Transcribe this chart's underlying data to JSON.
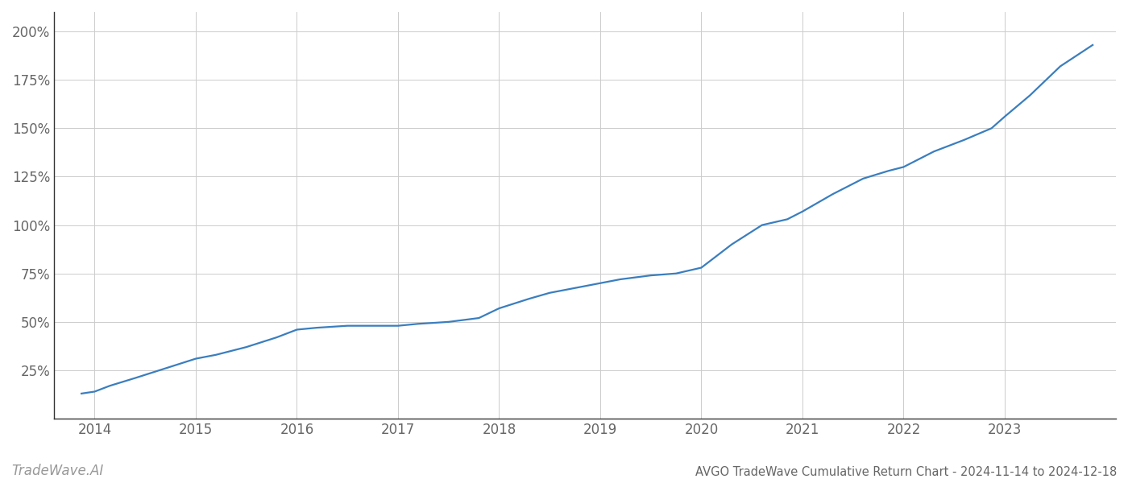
{
  "x_values": [
    2013.87,
    2014.0,
    2014.15,
    2014.4,
    2014.7,
    2015.0,
    2015.2,
    2015.5,
    2015.8,
    2016.0,
    2016.2,
    2016.5,
    2016.87,
    2017.0,
    2017.2,
    2017.5,
    2017.8,
    2018.0,
    2018.3,
    2018.5,
    2018.8,
    2019.0,
    2019.2,
    2019.5,
    2019.75,
    2020.0,
    2020.3,
    2020.6,
    2020.85,
    2021.0,
    2021.3,
    2021.6,
    2021.85,
    2022.0,
    2022.3,
    2022.6,
    2022.87,
    2023.0,
    2023.25,
    2023.55,
    2023.87
  ],
  "y_values": [
    13,
    14,
    17,
    21,
    26,
    31,
    33,
    37,
    42,
    46,
    47,
    48,
    48,
    48,
    49,
    50,
    52,
    57,
    62,
    65,
    68,
    70,
    72,
    74,
    75,
    78,
    90,
    100,
    103,
    107,
    116,
    124,
    128,
    130,
    138,
    144,
    150,
    156,
    167,
    182,
    193
  ],
  "line_color": "#3a7ebf",
  "line_width": 1.6,
  "title": "AVGO TradeWave Cumulative Return Chart - 2024-11-14 to 2024-12-18",
  "watermark": "TradeWave.AI",
  "background_color": "#ffffff",
  "grid_color": "#cccccc",
  "tick_label_color": "#666666",
  "title_color": "#666666",
  "watermark_color": "#999999",
  "xlim": [
    2013.6,
    2024.1
  ],
  "ylim": [
    0,
    210
  ],
  "xticks": [
    2014,
    2015,
    2016,
    2017,
    2018,
    2019,
    2020,
    2021,
    2022,
    2023
  ],
  "yticks": [
    25,
    50,
    75,
    100,
    125,
    150,
    175,
    200
  ],
  "title_fontsize": 10.5,
  "tick_fontsize": 12,
  "watermark_fontsize": 12
}
